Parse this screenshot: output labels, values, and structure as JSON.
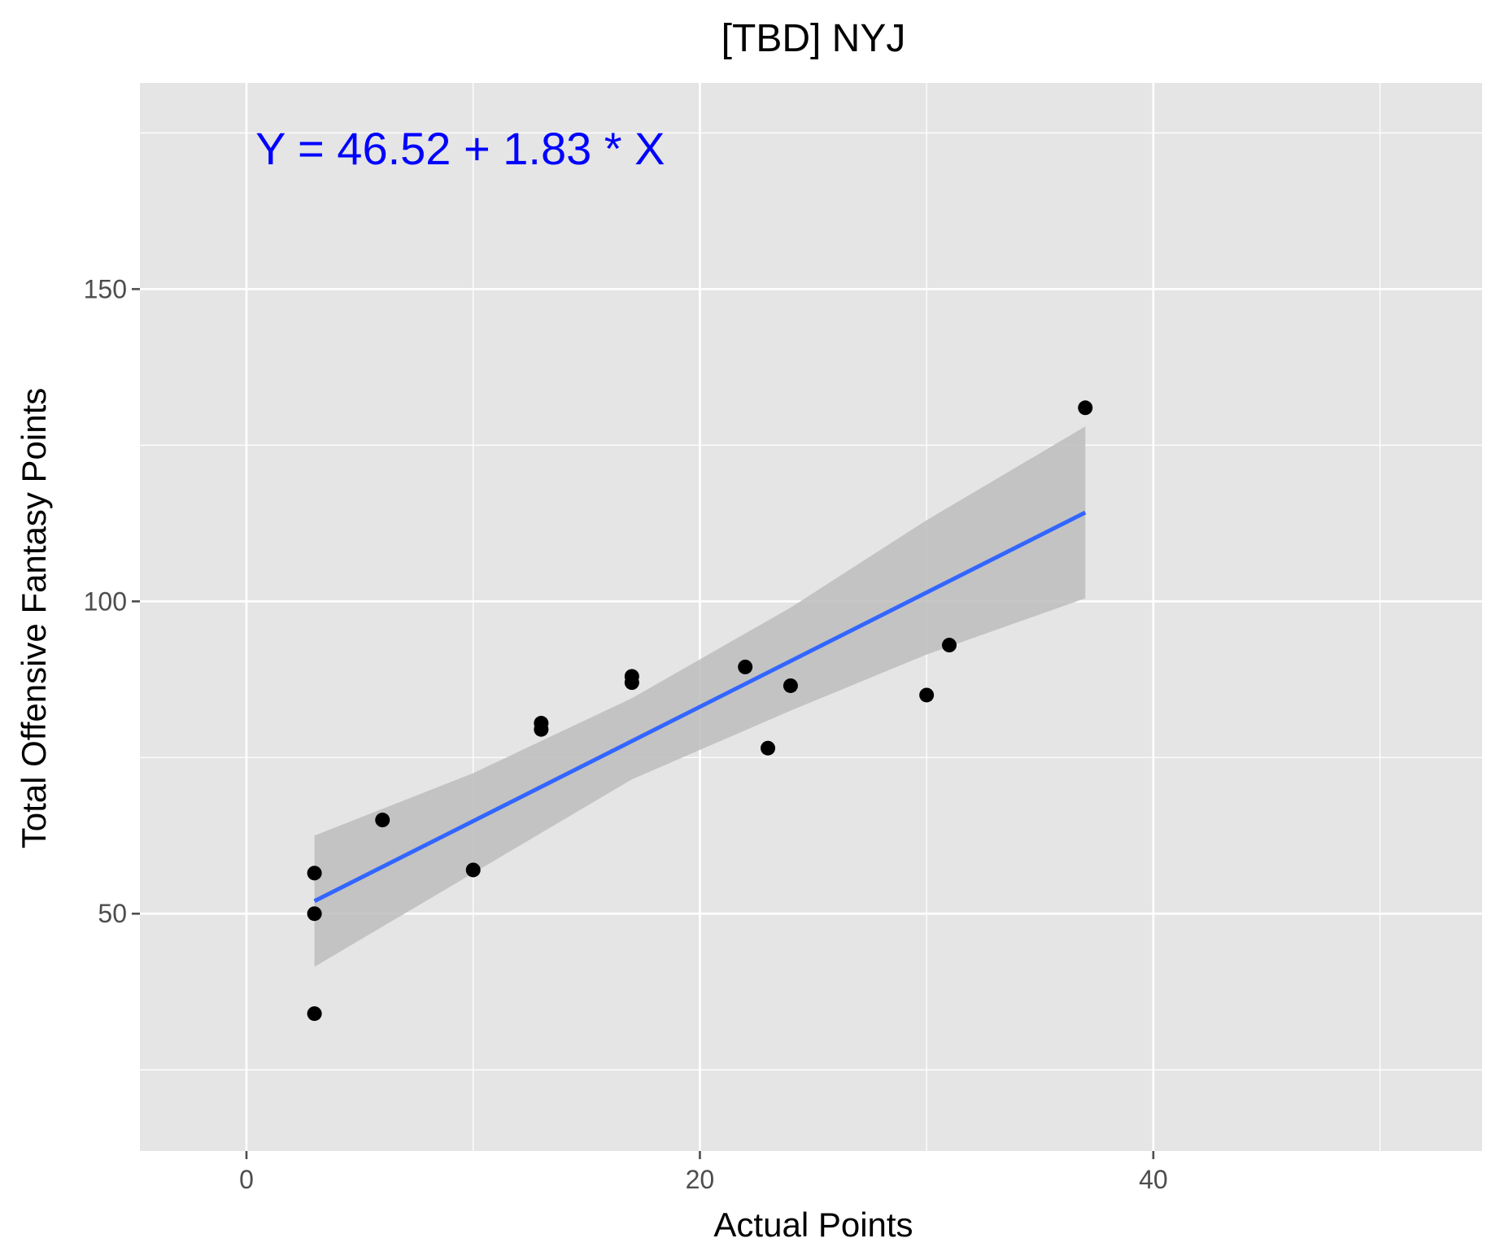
{
  "chart_data": {
    "type": "scatter",
    "title": "[TBD] NYJ",
    "xlabel": "Actual Points",
    "ylabel": "Total Offensive Fantasy Points",
    "xlim": [
      -4.7,
      54.5
    ],
    "ylim": [
      12,
      183
    ],
    "x_ticks": [
      0,
      20,
      40
    ],
    "y_ticks": [
      50,
      100,
      150
    ],
    "x_tick_labels": [
      "0",
      "20",
      "40"
    ],
    "y_tick_labels": [
      "50",
      "100",
      "150"
    ],
    "grid": true,
    "annotation": "Y = 46.52 + 1.83 * X",
    "colors": {
      "panel": "#e5e5e5",
      "grid": "#ffffff",
      "points": "#000000",
      "fit_line": "#3366ff",
      "ribbon": "#bdbdbd",
      "annotation": "#0000ff",
      "ticks": "#4d4d4d"
    },
    "points": [
      {
        "x": 3,
        "y": 34
      },
      {
        "x": 3,
        "y": 50
      },
      {
        "x": 3,
        "y": 56.5
      },
      {
        "x": 6,
        "y": 65
      },
      {
        "x": 10,
        "y": 57
      },
      {
        "x": 13,
        "y": 79.5
      },
      {
        "x": 13,
        "y": 80.5
      },
      {
        "x": 17,
        "y": 87
      },
      {
        "x": 17,
        "y": 88
      },
      {
        "x": 22,
        "y": 89.5
      },
      {
        "x": 23,
        "y": 76.5
      },
      {
        "x": 24,
        "y": 86.5
      },
      {
        "x": 30,
        "y": 85
      },
      {
        "x": 31,
        "y": 93
      },
      {
        "x": 37,
        "y": 131
      }
    ],
    "fit": {
      "intercept": 46.52,
      "slope": 1.83,
      "x": [
        3,
        37
      ],
      "ribbon": [
        {
          "x": 3,
          "lower": 41.5,
          "upper": 62.5
        },
        {
          "x": 10,
          "lower": 56.5,
          "upper": 72.5
        },
        {
          "x": 17,
          "lower": 71.5,
          "upper": 84.5
        },
        {
          "x": 24,
          "lower": 82.5,
          "upper": 99
        },
        {
          "x": 30,
          "lower": 91.5,
          "upper": 113
        },
        {
          "x": 37,
          "lower": 100.5,
          "upper": 128
        }
      ]
    }
  }
}
